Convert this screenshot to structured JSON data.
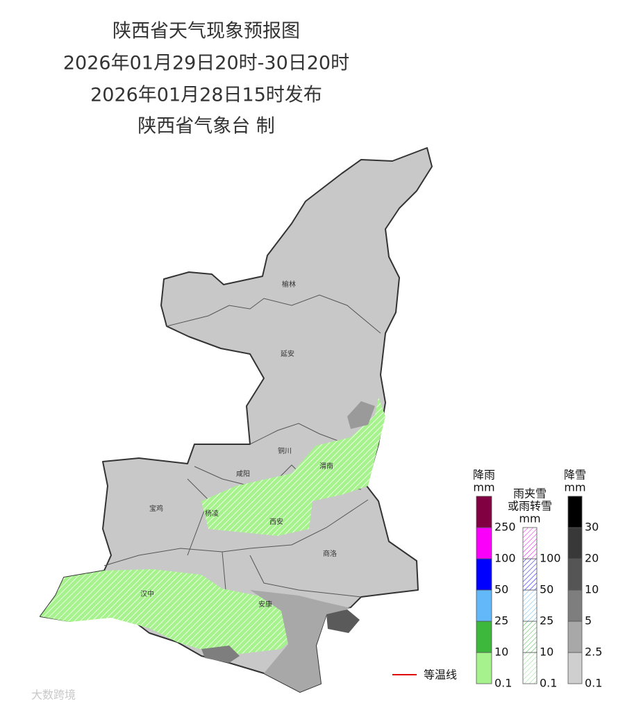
{
  "title": [
    "陕西省天气现象预报图",
    "2026年01月29日20时-30日20时",
    "2026年01月28日15时发布",
    "陕西省气象台 制"
  ],
  "cities": [
    "榆林",
    "延安",
    "铜川",
    "渭南",
    "咸阳",
    "宝鸡",
    "杨凌",
    "西安",
    "商洛",
    "汉中",
    "安康"
  ],
  "legend": {
    "rain": {
      "title": [
        "降雨"
      ],
      "unit": "mm",
      "levels": [
        0.1,
        10,
        25,
        50,
        100,
        250
      ],
      "colors": [
        "#a6f28c",
        "#3db83d",
        "#63b8f9",
        "#0000fe",
        "#fa00fa",
        "#810041"
      ]
    },
    "mix": {
      "title": [
        "雨夹雪",
        "或雨转雪"
      ],
      "unit": "mm",
      "levels": [
        0.1,
        10,
        25,
        50,
        100
      ],
      "colors": [
        "#8fe08f",
        "#3db83d",
        "#63b8f9",
        "#0000fe",
        "#fa00fa"
      ]
    },
    "snow": {
      "title": [
        "降雪"
      ],
      "unit": "mm",
      "levels": [
        0.1,
        2.5,
        5,
        10,
        20,
        30
      ],
      "colors": [
        "#cfcfcf",
        "#a8a8a8",
        "#7e7e7e",
        "#555555",
        "#383838",
        "#000000"
      ]
    }
  },
  "isotherm": "等温线",
  "watermark": "大数跨境"
}
